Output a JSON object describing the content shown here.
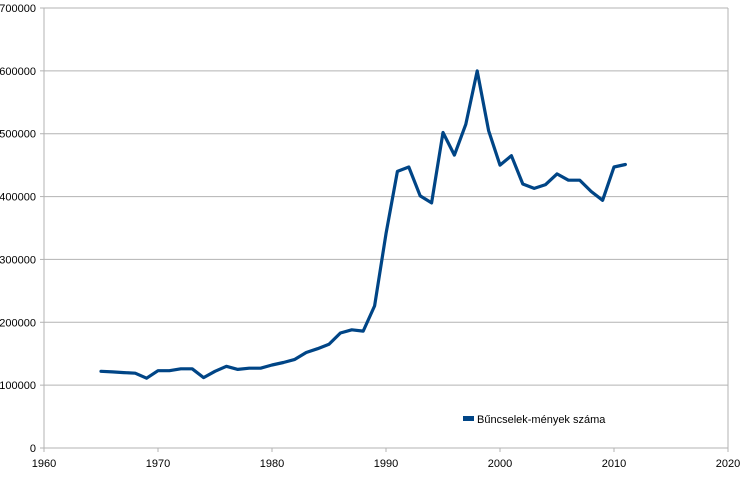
{
  "chart_data": {
    "type": "line",
    "title": "",
    "xlabel": "",
    "ylabel": "",
    "xlim": [
      1960,
      2020
    ],
    "ylim": [
      0,
      700000
    ],
    "x_ticks": [
      1960,
      1970,
      1980,
      1990,
      2000,
      2010,
      2020
    ],
    "y_ticks": [
      0,
      100000,
      200000,
      300000,
      400000,
      500000,
      600000,
      700000
    ],
    "grid": "horizontal",
    "legend_position": "bottom-right",
    "series": [
      {
        "name": "Bűncselek-mények száma",
        "color": "#004586",
        "x": [
          1965,
          1966,
          1967,
          1968,
          1969,
          1970,
          1971,
          1972,
          1973,
          1974,
          1975,
          1976,
          1977,
          1978,
          1979,
          1980,
          1981,
          1982,
          1983,
          1984,
          1985,
          1986,
          1987,
          1988,
          1989,
          1990,
          1991,
          1992,
          1993,
          1994,
          1995,
          1996,
          1997,
          1998,
          1999,
          2000,
          2001,
          2002,
          2003,
          2004,
          2005,
          2006,
          2007,
          2008,
          2009,
          2010,
          2011
        ],
        "values": [
          122000,
          121000,
          120000,
          119000,
          111000,
          123000,
          123000,
          126000,
          126000,
          112000,
          122000,
          130000,
          125000,
          127000,
          127000,
          132000,
          136000,
          141000,
          152000,
          158000,
          165000,
          183000,
          188000,
          186000,
          226000,
          341000,
          440000,
          447000,
          401000,
          390000,
          502000,
          466000,
          515000,
          600000,
          505000,
          450000,
          465000,
          420000,
          413000,
          419000,
          436000,
          426000,
          426000,
          408000,
          394000,
          447000,
          451000
        ]
      }
    ]
  }
}
